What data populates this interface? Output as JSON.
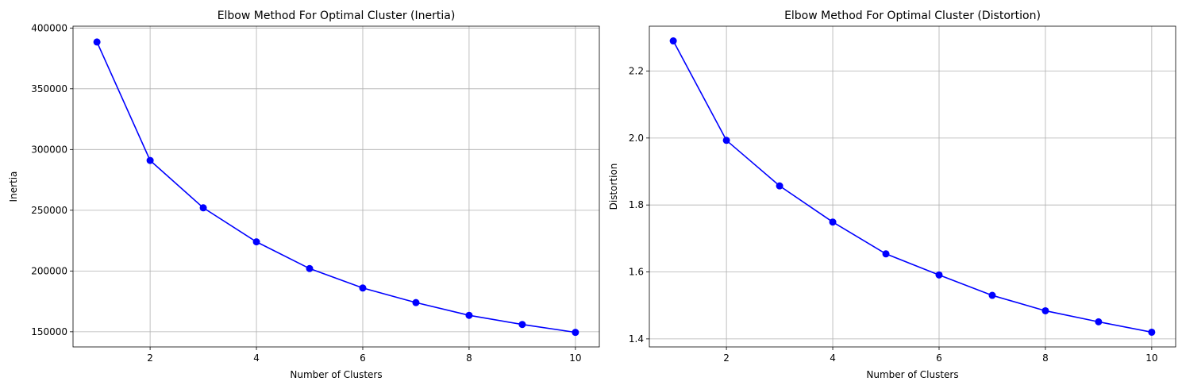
{
  "chart_data": [
    {
      "type": "line",
      "title": "Elbow Method For Optimal Cluster (Inertia)",
      "xlabel": "Number of Clusters",
      "ylabel": "Inertia",
      "x": [
        1,
        2,
        3,
        4,
        5,
        6,
        7,
        8,
        9,
        10
      ],
      "series": [
        {
          "values": [
            388500,
            291000,
            252000,
            224000,
            202000,
            186000,
            174000,
            163500,
            156000,
            149500
          ]
        }
      ],
      "xlim": [
        0.55,
        10.45
      ],
      "ylim": [
        137500,
        401500
      ],
      "xticks": [
        2,
        4,
        6,
        8,
        10
      ],
      "yticks": [
        150000,
        200000,
        250000,
        300000,
        350000,
        400000
      ],
      "ytick_labels": [
        "150000",
        "200000",
        "250000",
        "300000",
        "350000",
        "400000"
      ],
      "grid": true,
      "color": "#0000ff",
      "marker": "circle"
    },
    {
      "type": "line",
      "title": "Elbow Method For Optimal Cluster (Distortion)",
      "xlabel": "Number of Clusters",
      "ylabel": "Distortion",
      "x": [
        1,
        2,
        3,
        4,
        5,
        6,
        7,
        8,
        9,
        10
      ],
      "series": [
        {
          "values": [
            2.29,
            1.993,
            1.857,
            1.749,
            1.654,
            1.591,
            1.53,
            1.484,
            1.451,
            1.42
          ]
        }
      ],
      "xlim": [
        0.55,
        10.45
      ],
      "ylim": [
        1.376,
        2.334
      ],
      "xticks": [
        2,
        4,
        6,
        8,
        10
      ],
      "yticks": [
        1.4,
        1.6,
        1.8,
        2.0,
        2.2
      ],
      "ytick_labels": [
        "1.4",
        "1.6",
        "1.8",
        "2.0",
        "2.2"
      ],
      "grid": true,
      "color": "#0000ff",
      "marker": "circle"
    }
  ]
}
